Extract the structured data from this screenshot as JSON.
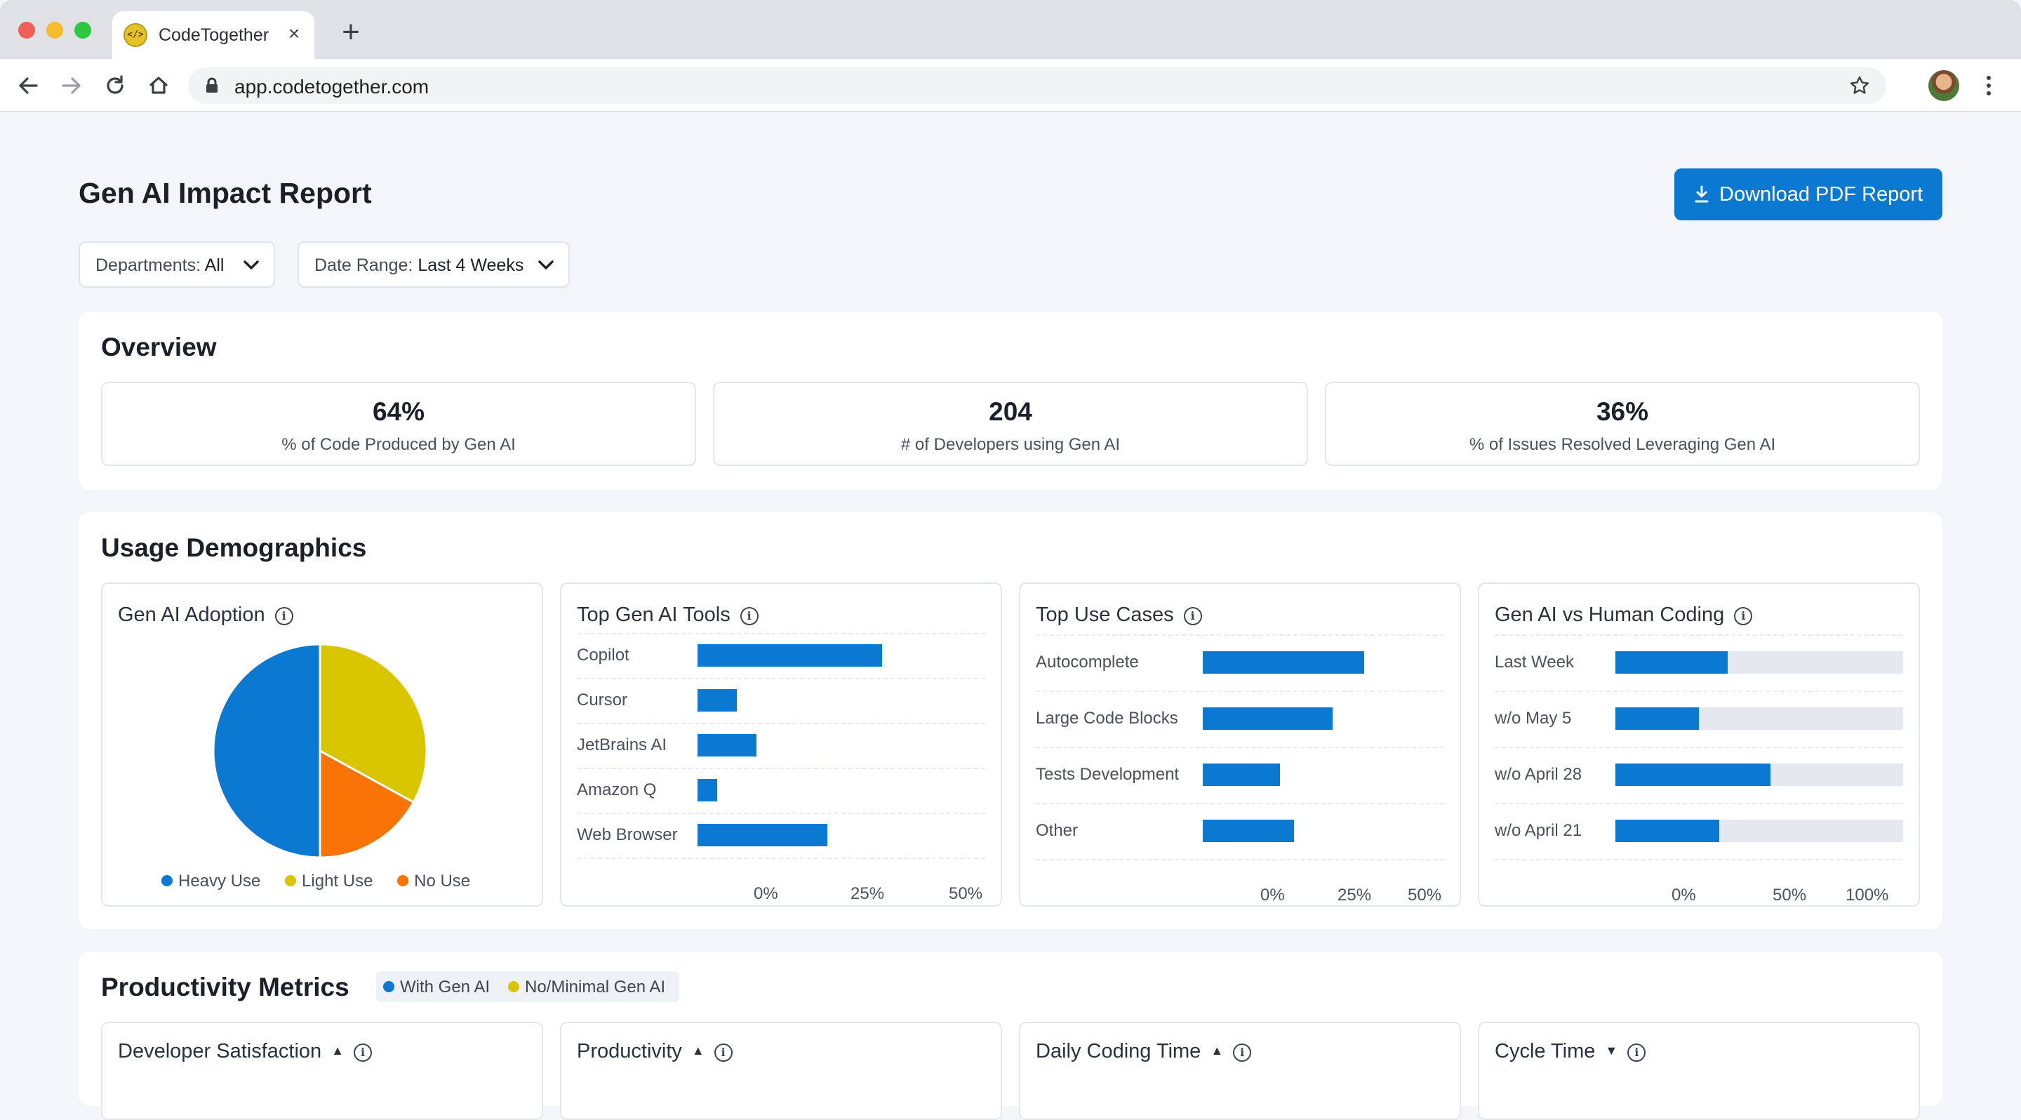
{
  "browser": {
    "tab_title": "CodeTogether",
    "url": "app.codetogether.com"
  },
  "colors": {
    "primary": "#0b78d1",
    "light": "#d8c500",
    "none": "#f97306"
  },
  "header": {
    "title": "Gen AI Impact Report",
    "download_label": "Download PDF Report"
  },
  "filters": {
    "departments_label": "Departments:",
    "departments_value": "All",
    "date_label": "Date Range:",
    "date_value": "Last 4 Weeks"
  },
  "overview": {
    "title": "Overview",
    "stats": [
      {
        "value": "64%",
        "label": "% of Code Produced by Gen AI"
      },
      {
        "value": "204",
        "label": "# of Developers using Gen AI"
      },
      {
        "value": "36%",
        "label": "% of Issues Resolved Leveraging Gen AI"
      }
    ]
  },
  "usage": {
    "title": "Usage Demographics",
    "adoption": {
      "title": "Gen AI Adoption",
      "legend": [
        "Heavy Use",
        "Light Use",
        "No Use"
      ]
    },
    "tools": {
      "title": "Top Gen AI Tools",
      "ticks": [
        "0%",
        "25%",
        "50%"
      ]
    },
    "use_cases": {
      "title": "Top Use Cases",
      "ticks": [
        "0%",
        "25%",
        "50%"
      ]
    },
    "vs_human": {
      "title": "Gen AI vs Human Coding",
      "ticks": [
        "0%",
        "50%",
        "100%"
      ]
    }
  },
  "chart_data": [
    {
      "type": "pie",
      "title": "Gen AI Adoption",
      "categories": [
        "Heavy Use",
        "Light Use",
        "No Use"
      ],
      "values": [
        50,
        33,
        17
      ]
    },
    {
      "type": "bar",
      "title": "Top Gen AI Tools",
      "categories": [
        "Copilot",
        "Cursor",
        "JetBrains AI",
        "Amazon Q",
        "Web Browser"
      ],
      "values": [
        47,
        10,
        15,
        5,
        33
      ],
      "xlim": [
        0,
        50
      ]
    },
    {
      "type": "bar",
      "title": "Top Use Cases",
      "categories": [
        "Autocomplete",
        "Large Code Blocks",
        "Tests Development",
        "Other"
      ],
      "values": [
        46,
        37,
        22,
        26
      ],
      "xlim": [
        0,
        50
      ]
    },
    {
      "type": "bar",
      "title": "Gen AI vs Human Coding",
      "categories": [
        "Last Week",
        "w/o May 5",
        "w/o April 28",
        "w/o April 21"
      ],
      "values": [
        39,
        29,
        54,
        36
      ],
      "xlim": [
        0,
        100
      ]
    }
  ],
  "productivity": {
    "title": "Productivity Metrics",
    "legend": [
      "With Gen AI",
      "No/Minimal Gen AI"
    ],
    "panels": [
      "Developer Satisfaction",
      "Productivity",
      "Daily Coding Time",
      "Cycle Time"
    ]
  }
}
